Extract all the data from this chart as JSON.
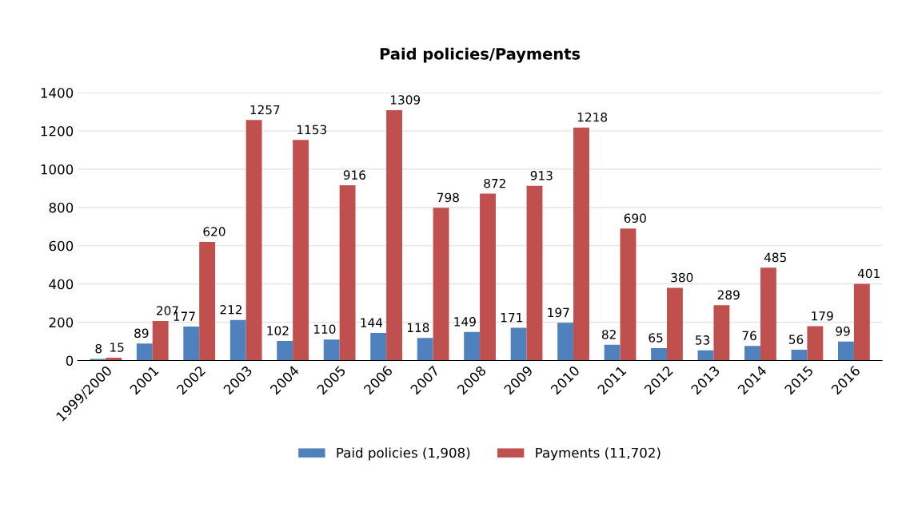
{
  "chart_data": {
    "type": "bar",
    "title": "Paid policies/Payments",
    "categories": [
      "1999/2000",
      "2001",
      "2002",
      "2003",
      "2004",
      "2005",
      "2006",
      "2007",
      "2008",
      "2009",
      "2010",
      "2011",
      "2012",
      "2013",
      "2014",
      "2015",
      "2016"
    ],
    "series": [
      {
        "name": "Paid policies (1,908)",
        "color": "#4f81bd",
        "values": [
          8,
          89,
          177,
          212,
          102,
          110,
          144,
          118,
          149,
          171,
          197,
          82,
          65,
          53,
          76,
          56,
          99
        ]
      },
      {
        "name": "Payments (11,702)",
        "color": "#c0504d",
        "values": [
          15,
          207,
          620,
          1257,
          1153,
          916,
          1309,
          798,
          872,
          913,
          1218,
          690,
          380,
          289,
          485,
          179,
          401
        ]
      }
    ],
    "ylim": [
      0,
      1400
    ],
    "yticks": [
      0,
      200,
      400,
      600,
      800,
      1000,
      1200,
      1400
    ],
    "grid": "y",
    "legend": "bottom",
    "data_labels": true
  }
}
